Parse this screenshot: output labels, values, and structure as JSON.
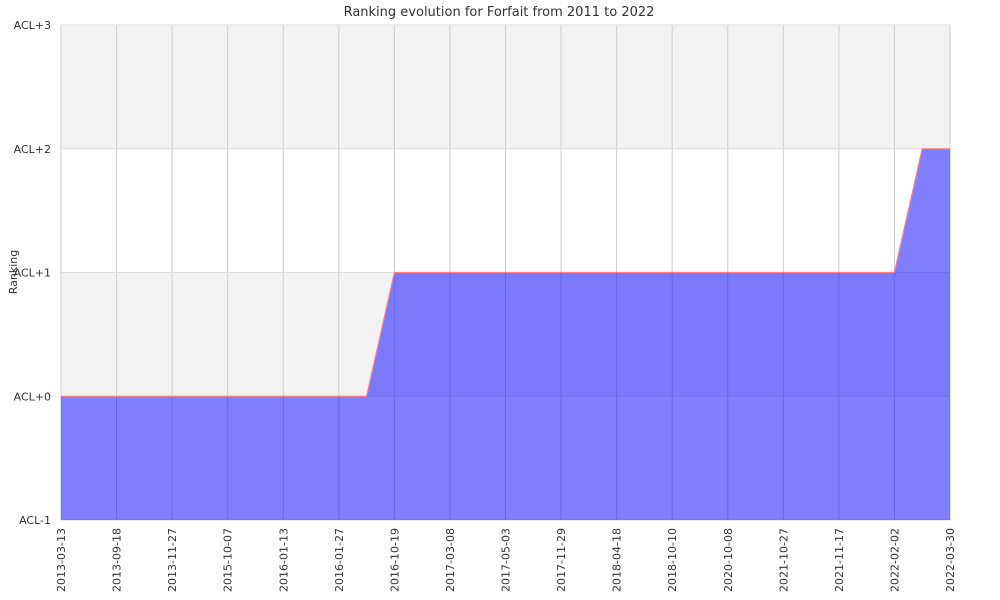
{
  "chart_data": {
    "type": "area",
    "title": "Ranking evolution for Forfait  from 2011 to 2022",
    "ylabel": "Ranking",
    "xlabel": "",
    "y_tick_labels": [
      "ACL-1",
      "ACL+0",
      "ACL+1",
      "ACL+2",
      "ACL+3"
    ],
    "ylim": [
      -1,
      3
    ],
    "x_tick_labels": [
      "2013-03-13",
      "2013-09-18",
      "2013-11-27",
      "2015-10-07",
      "2016-01-13",
      "2016-01-27",
      "2016-10-19",
      "2017-03-08",
      "2017-05-03",
      "2017-11-29",
      "2018-04-18",
      "2018-10-10",
      "2020-10-08",
      "2021-10-27",
      "2021-11-17",
      "2022-02-02",
      "2022-03-30"
    ],
    "x": [
      0,
      1,
      2,
      3,
      4,
      5,
      5.5,
      6,
      7,
      8,
      9,
      10,
      11,
      12,
      13,
      14,
      15,
      15.5,
      16
    ],
    "values": [
      0,
      0,
      0,
      0,
      0,
      0,
      0,
      1,
      1,
      1,
      1,
      1,
      1,
      1,
      1,
      1,
      1,
      2,
      2
    ],
    "fill_color": "#7b7bf9",
    "line_color": "#ff7f7f",
    "alt_band_color": "#f2f2f2",
    "grid": true
  }
}
